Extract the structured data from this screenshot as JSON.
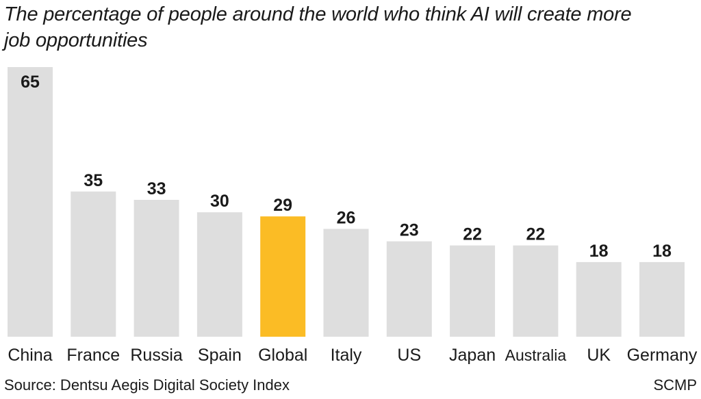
{
  "chart_data": {
    "type": "bar",
    "title": "The percentage of people around the world who think AI will create more job opportunities",
    "categories": [
      "China",
      "France",
      "Russia",
      "Spain",
      "Global",
      "Italy",
      "US",
      "Japan",
      "Australia",
      "UK",
      "Germany"
    ],
    "values": [
      65,
      35,
      33,
      30,
      29,
      26,
      23,
      22,
      22,
      18,
      18
    ],
    "highlight": "Global",
    "colors": {
      "bar": "#dedede",
      "highlight": "#fbbc25",
      "label": "#1a1a1a"
    },
    "xlabel": "",
    "ylabel": "",
    "ylim": [
      0,
      65
    ],
    "grid": false
  },
  "footer": {
    "source": "Source: Dentsu Aegis Digital Society Index",
    "credit": "SCMP"
  }
}
